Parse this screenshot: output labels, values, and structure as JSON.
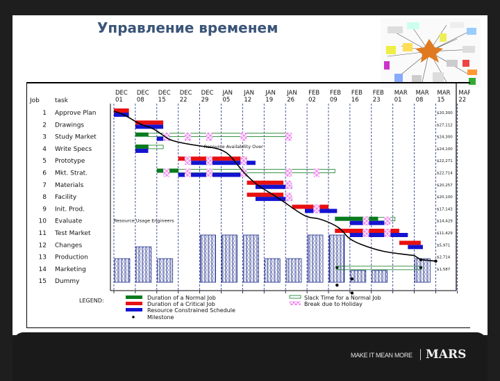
{
  "slide": {
    "title": "Управление временем",
    "image_alt": "mind-map illustration"
  },
  "footer": {
    "tagline": "MAKE IT MEAN MORE",
    "brand": "MARS"
  },
  "chart_data": {
    "type": "gantt",
    "title": "",
    "column_headers": {
      "job": "Job",
      "task": "task"
    },
    "dates": [
      "DEC 01",
      "DEC 08",
      "DEC 15",
      "DEC 22",
      "DEC 29",
      "JAN 05",
      "JAN 12",
      "JAN 19",
      "JAN 26",
      "FEB 02",
      "FEB 09",
      "FEB 16",
      "FEB 23",
      "MAR 01",
      "MAR 08",
      "MAR 15",
      "MAR 22"
    ],
    "jobs": [
      {
        "id": 1,
        "task": "Approve Plan",
        "cost": "$20,300"
      },
      {
        "id": 2,
        "task": "Drawings",
        "cost": "$27,112"
      },
      {
        "id": 3,
        "task": "Study Market",
        "cost": "$24,300"
      },
      {
        "id": 4,
        "task": "Write Specs",
        "cost": "$24,100"
      },
      {
        "id": 5,
        "task": "Prototype",
        "cost": "$22,271"
      },
      {
        "id": 6,
        "task": "Mkt. Strat.",
        "cost": "$22,714"
      },
      {
        "id": 7,
        "task": "Materials",
        "cost": "$20,257"
      },
      {
        "id": 8,
        "task": "Facility",
        "cost": "$20,100"
      },
      {
        "id": 9,
        "task": "Init. Prod.",
        "cost": "$17,143"
      },
      {
        "id": 10,
        "task": "Evaluate",
        "cost": "$14,429"
      },
      {
        "id": 11,
        "task": "Test Market",
        "cost": "$11,429"
      },
      {
        "id": 12,
        "task": "Changes",
        "cost": "$5,971"
      },
      {
        "id": 13,
        "task": "Production",
        "cost": "$2,714"
      },
      {
        "id": 14,
        "task": "Marketing",
        "cost": "$1,587"
      },
      {
        "id": 15,
        "task": "Dummy",
        "cost": ""
      }
    ],
    "bars": [
      {
        "job": 1,
        "normal": [
          0,
          0.7
        ],
        "critical": true,
        "resource": [
          0,
          0.7
        ]
      },
      {
        "job": 2,
        "normal": [
          1,
          2.3
        ],
        "critical": true,
        "resource": [
          1,
          2.3
        ]
      },
      {
        "job": 3,
        "normal": [
          1,
          1.6
        ],
        "critical": false,
        "slack_to": 8.2,
        "resource": [
          2,
          2.6
        ]
      },
      {
        "job": 4,
        "normal": [
          1,
          1.6
        ],
        "critical": false,
        "slack_to": 2.3,
        "resource": [
          1,
          1.6
        ]
      },
      {
        "job": 5,
        "normal": [
          3,
          6.2
        ],
        "critical": true,
        "resource": [
          3.6,
          6.6
        ]
      },
      {
        "job": 6,
        "normal": [
          2,
          3.0
        ],
        "critical": false,
        "slack_to": 10.3,
        "resource": [
          3,
          6.2
        ]
      },
      {
        "job": 7,
        "normal": [
          6.2,
          7.9
        ],
        "critical": true,
        "resource": [
          6.6,
          8.3
        ]
      },
      {
        "job": 8,
        "normal": [
          6.2,
          7.9
        ],
        "critical": true,
        "resource": [
          6.6,
          8.3
        ]
      },
      {
        "job": 9,
        "normal": [
          8.3,
          10.0
        ],
        "critical": true,
        "resource": [
          8.9,
          10.4
        ]
      },
      {
        "job": 10,
        "normal": [
          10.3,
          12.3
        ],
        "critical": false,
        "slack_to": 13.1,
        "resource": [
          11.0,
          12.8
        ]
      },
      {
        "job": 11,
        "normal": [
          10.3,
          13.3
        ],
        "critical": true,
        "resource": [
          11.0,
          13.7
        ]
      },
      {
        "job": 12,
        "normal": [
          13.3,
          14.3
        ],
        "critical": true,
        "resource": [
          13.7,
          14.4
        ]
      },
      {
        "job": 13,
        "normal": [
          0,
          0
        ],
        "critical": false,
        "resource": [
          0,
          0
        ]
      },
      {
        "job": 14,
        "normal": [
          0,
          0
        ],
        "critical": false,
        "resource": [
          0,
          0
        ]
      },
      {
        "job": 15,
        "normal": [
          0,
          0
        ],
        "critical": false,
        "resource": [
          0,
          0
        ]
      }
    ],
    "annotations": [
      "Resource Availability Over",
      "Resource Usage Engineers"
    ],
    "resource_usage": [
      {
        "week": 0,
        "height": 2
      },
      {
        "week": 1,
        "height": 3
      },
      {
        "week": 2,
        "height": 2
      },
      {
        "week": 4,
        "height": 4
      },
      {
        "week": 5,
        "height": 4
      },
      {
        "week": 6,
        "height": 4
      },
      {
        "week": 7,
        "height": 2
      },
      {
        "week": 8,
        "height": 2
      },
      {
        "week": 9,
        "height": 4
      },
      {
        "week": 10,
        "height": 4
      },
      {
        "week": 11,
        "height": 1
      },
      {
        "week": 12,
        "height": 1
      },
      {
        "week": 14,
        "height": 2
      }
    ],
    "legend": {
      "label": "LEGEND:",
      "items": [
        {
          "name": "Duration of a Normal Job",
          "color": "#0a7a1e",
          "style": "solid"
        },
        {
          "name": "Duration of a Critical Job",
          "color": "#e81010",
          "style": "solid"
        },
        {
          "name": "Resource Constrained Schedule",
          "color": "#1414d0",
          "style": "solid"
        },
        {
          "name": "Milestone",
          "color": "#000000",
          "style": "marker"
        },
        {
          "name": "Slack Time for a Normal Job",
          "color": "#0a7a1e",
          "style": "outline"
        },
        {
          "name": "Break due to Holiday",
          "color": "#e060e0",
          "style": "hatch"
        }
      ]
    }
  }
}
